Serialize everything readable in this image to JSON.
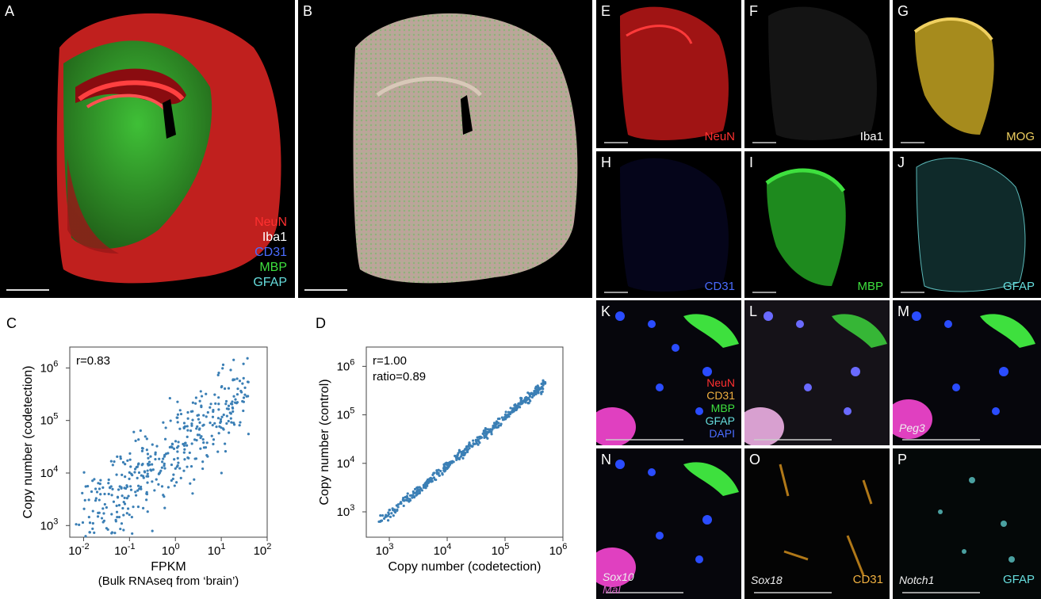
{
  "panels": {
    "A": {
      "label": "A",
      "channels": [
        {
          "name": "NeuN",
          "color": "#ff3030"
        },
        {
          "name": "Iba1",
          "color": "#ffffff"
        },
        {
          "name": "CD31",
          "color": "#4a6cff"
        },
        {
          "name": "MBP",
          "color": "#3ee03e"
        },
        {
          "name": "GFAP",
          "color": "#66dddd"
        }
      ]
    },
    "B": {
      "label": "B"
    },
    "E": {
      "label": "E",
      "channel": "NeuN",
      "color": "#ff3030"
    },
    "F": {
      "label": "F",
      "channel": "Iba1",
      "color": "#ffffff"
    },
    "G": {
      "label": "G",
      "channel": "MOG",
      "color": "#f0d060"
    },
    "H": {
      "label": "H",
      "channel": "CD31",
      "color": "#4a6cff"
    },
    "I": {
      "label": "I",
      "channel": "MBP",
      "color": "#3ee03e"
    },
    "J": {
      "label": "J",
      "channel": "GFAP",
      "color": "#66dddd"
    },
    "K": {
      "label": "K",
      "legend": [
        {
          "name": "NeuN",
          "color": "#ff3030"
        },
        {
          "name": "CD31",
          "color": "#f0b040"
        },
        {
          "name": "MBP",
          "color": "#3ee03e"
        },
        {
          "name": "GFAP",
          "color": "#66dddd"
        },
        {
          "name": "DAPI",
          "color": "#4a6cff"
        }
      ]
    },
    "L": {
      "label": "L"
    },
    "M": {
      "label": "M",
      "gene": "Peg3"
    },
    "N": {
      "label": "N",
      "gene": "Sox10",
      "gene2": "Mal"
    },
    "O": {
      "label": "O",
      "gene": "Sox18",
      "channel": "CD31",
      "color": "#f0b040"
    },
    "P": {
      "label": "P",
      "gene": "Notch1",
      "channel": "GFAP",
      "color": "#66dddd"
    }
  },
  "chart_data": [
    {
      "panel": "C",
      "type": "scatter",
      "annotation": "r=0.83",
      "xlabel": "FPKM",
      "xlabel2": "(Bulk RNAseq from ‘brain’)",
      "ylabel": "Copy number (codetection)",
      "xscale": "log",
      "yscale": "log",
      "xlim": [
        0.005,
        100
      ],
      "ylim": [
        600,
        2500000
      ],
      "xticks": [
        {
          "v": 0.01,
          "base": "10",
          "exp": "-2"
        },
        {
          "v": 0.1,
          "base": "10",
          "exp": "-1"
        },
        {
          "v": 1,
          "base": "10",
          "exp": "0"
        },
        {
          "v": 10,
          "base": "10",
          "exp": "1"
        },
        {
          "v": 100,
          "base": "10",
          "exp": "2"
        }
      ],
      "yticks": [
        {
          "v": 1000,
          "base": "10",
          "exp": "3"
        },
        {
          "v": 10000,
          "base": "10",
          "exp": "4"
        },
        {
          "v": 100000,
          "base": "10",
          "exp": "5"
        },
        {
          "v": 1000000,
          "base": "10",
          "exp": "6"
        }
      ],
      "color": "#3b7fb5",
      "n_points": 420,
      "fit": {
        "slope": 0.72,
        "intercept_log10": 4.45,
        "scatter_sd_log10": 0.42
      }
    },
    {
      "panel": "D",
      "type": "scatter",
      "annotation": "r=1.00",
      "annotation2": "ratio=0.89",
      "xlabel": "Copy number (codetection)",
      "ylabel": "Copy number (control)",
      "xscale": "log",
      "yscale": "log",
      "xlim": [
        400,
        1000000
      ],
      "ylim": [
        300,
        2500000
      ],
      "xticks": [
        {
          "v": 1000,
          "base": "10",
          "exp": "3"
        },
        {
          "v": 10000,
          "base": "10",
          "exp": "4"
        },
        {
          "v": 100000,
          "base": "10",
          "exp": "5"
        },
        {
          "v": 1000000,
          "base": "10",
          "exp": "6"
        }
      ],
      "yticks": [
        {
          "v": 1000,
          "base": "10",
          "exp": "3"
        },
        {
          "v": 10000,
          "base": "10",
          "exp": "4"
        },
        {
          "v": 100000,
          "base": "10",
          "exp": "5"
        },
        {
          "v": 1000000,
          "base": "10",
          "exp": "6"
        }
      ],
      "color": "#3b7fb5",
      "n_points": 420,
      "fit": {
        "slope": 1.0,
        "intercept_log10": -0.05,
        "scatter_sd_log10": 0.05
      }
    }
  ]
}
